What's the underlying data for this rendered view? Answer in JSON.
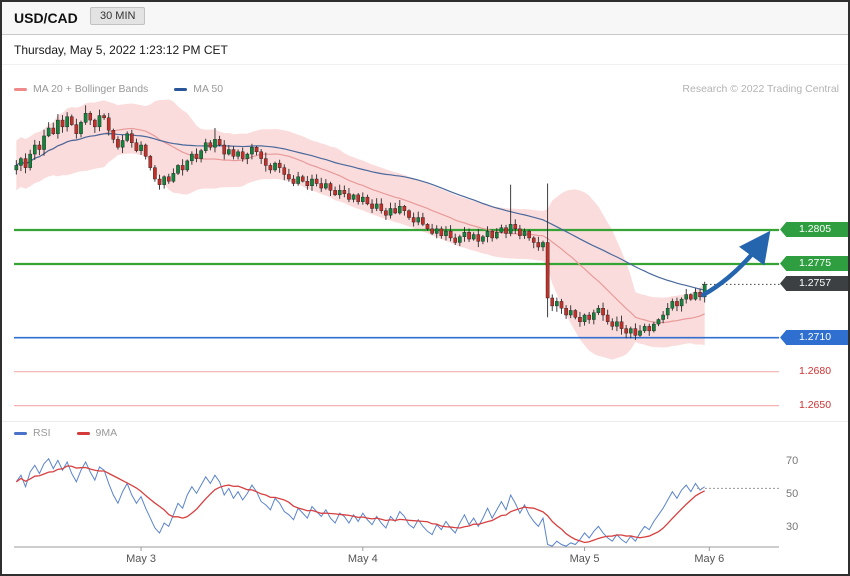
{
  "window": {
    "title": "USD/CAD",
    "timeframe_badge": "30 MIN",
    "datetime": "Thursday, May 5, 2022 1:23:12 PM CET",
    "credit": "Research © 2022 Trading Central"
  },
  "legends": {
    "main": [
      {
        "label": "MA 20 + Bollinger Bands",
        "swatch": "#f08a8a"
      },
      {
        "label": "MA 50",
        "swatch": "#2a5699"
      }
    ],
    "rsi": [
      {
        "label": "RSI",
        "swatch": "#4a72c8"
      },
      {
        "label": "9MA",
        "swatch": "#d43b3b"
      }
    ]
  },
  "colors": {
    "candle_up": "#12843c",
    "candle_down": "#c3302a",
    "bollinger_fill": "rgba(242,150,150,0.33)",
    "ma20": "#e89a9a",
    "ma50": "#49699c",
    "rsi_line": "#5b84cc",
    "rsi_ma": "#d84040",
    "arrow": "#2565ae",
    "level_green": "#35a435",
    "level_blue": "#2e6fd0",
    "level_pink": "#f3b1b1",
    "last_price_bg": "#3c4043",
    "support_text_red": "#cc3333"
  },
  "chart_data": [
    {
      "type": "candlestick",
      "symbol": "USD/CAD",
      "interval": "30 MIN",
      "y_range": [
        1.2645,
        1.292
      ],
      "x_axis": {
        "tick_labels": [
          "May 3",
          "May 4",
          "May 5",
          "May 6"
        ],
        "tick_indices": [
          27,
          75,
          123,
          150
        ]
      },
      "closes": [
        1.2862,
        1.2868,
        1.286,
        1.2872,
        1.288,
        1.2876,
        1.2888,
        1.2895,
        1.289,
        1.2902,
        1.2896,
        1.2905,
        1.2898,
        1.289,
        1.29,
        1.2908,
        1.2902,
        1.2896,
        1.2906,
        1.2904,
        1.2893,
        1.2885,
        1.2878,
        1.2884,
        1.289,
        1.2882,
        1.2875,
        1.288,
        1.287,
        1.286,
        1.285,
        1.2845,
        1.2852,
        1.2848,
        1.2855,
        1.2862,
        1.2858,
        1.2866,
        1.2872,
        1.2868,
        1.2875,
        1.2882,
        1.2878,
        1.2885,
        1.288,
        1.2872,
        1.2876,
        1.287,
        1.2874,
        1.2868,
        1.2872,
        1.2878,
        1.2874,
        1.2868,
        1.2862,
        1.2858,
        1.2864,
        1.286,
        1.2854,
        1.285,
        1.2846,
        1.2852,
        1.2848,
        1.2844,
        1.285,
        1.2846,
        1.2842,
        1.2846,
        1.284,
        1.2836,
        1.284,
        1.2837,
        1.2832,
        1.2836,
        1.283,
        1.2834,
        1.2828,
        1.2824,
        1.2828,
        1.2822,
        1.2818,
        1.2824,
        1.282,
        1.2826,
        1.2822,
        1.2816,
        1.2812,
        1.2816,
        1.281,
        1.2806,
        1.2802,
        1.2806,
        1.28,
        1.2804,
        1.2798,
        1.2794,
        1.2799,
        1.2803,
        1.2797,
        1.2801,
        1.2795,
        1.2799,
        1.2804,
        1.2798,
        1.2803,
        1.2807,
        1.2802,
        1.281,
        1.2806,
        1.28,
        1.2804,
        1.2798,
        1.2794,
        1.279,
        1.2794,
        1.2745,
        1.2738,
        1.2742,
        1.2736,
        1.273,
        1.2734,
        1.2728,
        1.2724,
        1.273,
        1.2726,
        1.2732,
        1.2736,
        1.273,
        1.2724,
        1.272,
        1.2724,
        1.2718,
        1.2714,
        1.2718,
        1.2712,
        1.2716,
        1.272,
        1.2716,
        1.2722,
        1.2726,
        1.273,
        1.2736,
        1.2742,
        1.2738,
        1.2744,
        1.2748,
        1.2744,
        1.275,
        1.2746,
        1.2757
      ],
      "wick_overrides": {
        "15": {
          "h": 1.2915
        },
        "43": {
          "h": 1.2895
        },
        "107": {
          "h": 1.2845
        },
        "115": {
          "h": 1.2846,
          "l": 1.2728
        },
        "134": {
          "l": 1.2708
        }
      },
      "indicators": [
        {
          "name": "MA 20 + Bollinger Bands",
          "color": "#e89a9a"
        },
        {
          "name": "MA 50",
          "color": "#49699c"
        }
      ],
      "levels": [
        {
          "label": "1.2805",
          "value": 1.2805,
          "type": "resistance",
          "style": "tag",
          "color": "#2f9e41",
          "line_color": "#35a435",
          "line_width": 2.2
        },
        {
          "label": "1.2775",
          "value": 1.2775,
          "type": "resistance",
          "style": "tag",
          "color": "#2f9e41",
          "line_color": "#35a435",
          "line_width": 2.2
        },
        {
          "label": "1.2757",
          "value": 1.2757,
          "type": "last-price",
          "style": "tag",
          "color": "#3c4043",
          "line_color": "#444444",
          "line_width": 0,
          "dotted": true
        },
        {
          "label": "1.2710",
          "value": 1.271,
          "type": "support",
          "style": "tag",
          "color": "#2e6fd0",
          "line_color": "#2e6fd0",
          "line_width": 1.6
        },
        {
          "label": "1.2680",
          "value": 1.268,
          "type": "support",
          "style": "text",
          "color": "#cc3333",
          "line_color": "#f3b1b1",
          "line_width": 1.2
        },
        {
          "label": "1.2650",
          "value": 1.265,
          "type": "support",
          "style": "text",
          "color": "#cc3333",
          "line_color": "#f3b1b1",
          "line_width": 1.2
        }
      ],
      "projection_arrow": {
        "direction": "up",
        "from_price": 1.275,
        "to_price": 1.2805,
        "color": "#2565ae"
      }
    },
    {
      "type": "line",
      "title": "RSI",
      "y_axis": {
        "tick_labels": [
          "70",
          "50",
          "30"
        ],
        "tick_values": [
          70,
          50,
          30
        ]
      },
      "current_value_line": 54,
      "series": [
        {
          "name": "RSI",
          "color": "#5b84cc",
          "values": [
            58,
            62,
            55,
            64,
            68,
            63,
            69,
            72,
            66,
            71,
            65,
            70,
            63,
            58,
            65,
            70,
            64,
            59,
            67,
            65,
            57,
            50,
            45,
            52,
            57,
            50,
            45,
            49,
            42,
            36,
            30,
            27,
            33,
            31,
            38,
            45,
            42,
            50,
            55,
            51,
            56,
            61,
            57,
            62,
            58,
            50,
            54,
            48,
            52,
            47,
            51,
            56,
            52,
            46,
            44,
            41,
            48,
            45,
            40,
            38,
            35,
            42,
            39,
            36,
            43,
            40,
            37,
            41,
            36,
            33,
            39,
            37,
            33,
            38,
            34,
            39,
            35,
            32,
            37,
            33,
            30,
            37,
            34,
            40,
            37,
            32,
            30,
            35,
            31,
            28,
            26,
            32,
            29,
            34,
            30,
            27,
            33,
            38,
            32,
            36,
            31,
            36,
            42,
            36,
            41,
            46,
            41,
            50,
            45,
            39,
            44,
            38,
            34,
            31,
            36,
            20,
            19,
            22,
            20,
            19,
            21,
            20,
            23,
            27,
            24,
            28,
            31,
            27,
            24,
            22,
            26,
            23,
            21,
            25,
            22,
            27,
            31,
            29,
            34,
            38,
            42,
            47,
            52,
            48,
            53,
            56,
            52,
            57,
            53,
            55
          ]
        },
        {
          "name": "9MA",
          "color": "#d84040",
          "derived": "9-period SMA of RSI"
        }
      ]
    }
  ]
}
